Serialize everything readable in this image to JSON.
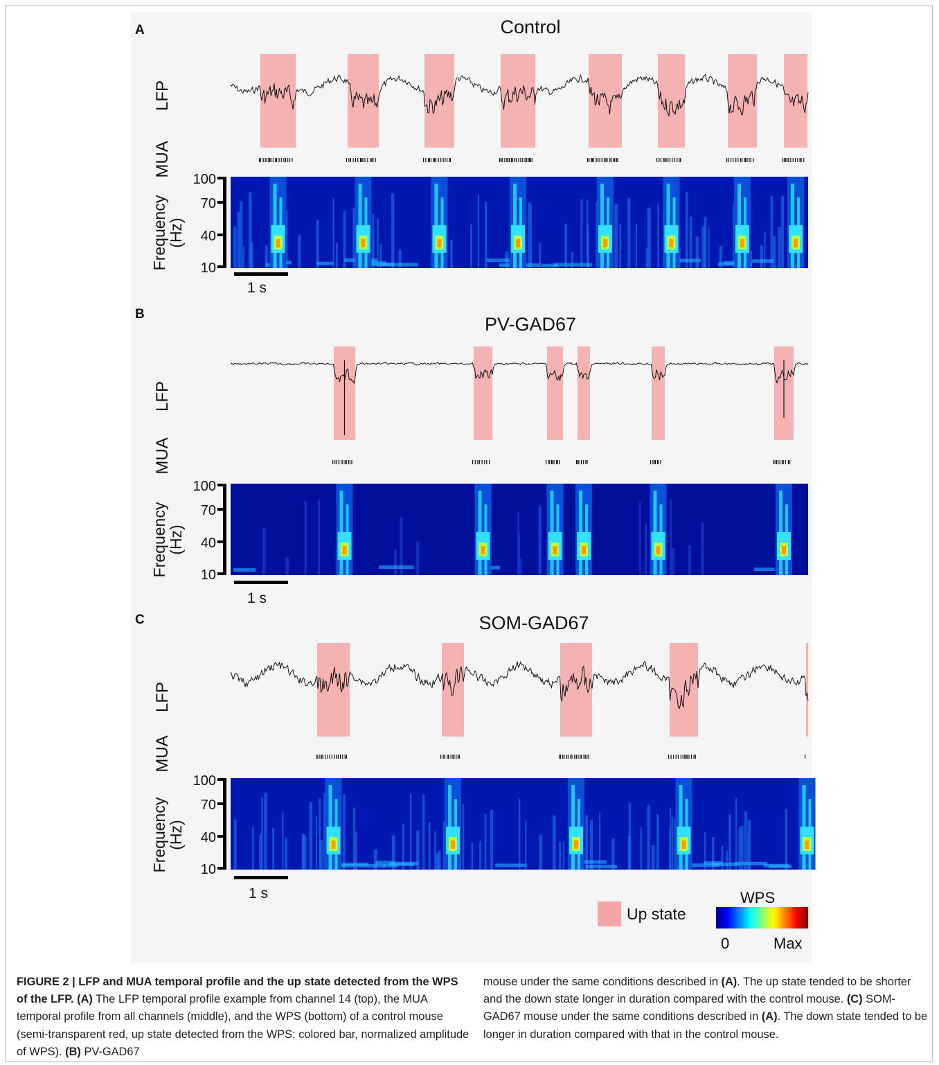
{
  "panels": [
    {
      "letter": "A",
      "title": "Control",
      "lfp_label": "LFP",
      "mua_label": "MUA",
      "freq_label_1": "Frequency",
      "freq_label_2": "(Hz)",
      "ticks": [
        "100",
        "70",
        "40",
        "10"
      ],
      "scale_label": "1 s"
    },
    {
      "letter": "B",
      "title": "PV-GAD67",
      "lfp_label": "LFP",
      "mua_label": "MUA",
      "freq_label_1": "Frequency",
      "freq_label_2": "(Hz)",
      "ticks": [
        "100",
        "70",
        "40",
        "10"
      ],
      "scale_label": "1 s"
    },
    {
      "letter": "C",
      "title": "SOM-GAD67",
      "lfp_label": "LFP",
      "mua_label": "MUA",
      "freq_label_1": "Frequency",
      "freq_label_2": "(Hz)",
      "ticks": [
        "100",
        "70",
        "40",
        "10"
      ],
      "scale_label": "1 s"
    }
  ],
  "legend": {
    "up_state_label": "Up state",
    "colorbar_title": "WPS",
    "colorbar_min": "0",
    "colorbar_max": "Max",
    "up_state_color": "#f4a6a6"
  },
  "caption": {
    "heading": "FIGURE 2 | LFP and MUA temporal profile and the up state detected from the WPS of the LFP.",
    "a_label": "(A)",
    "a_text": " The LFP temporal profile example from channel 14 (top), the MUA temporal profile from all channels (middle), and the WPS (bottom) of a control mouse (semi-transparent red, up state detected from the WPS; colored bar, normalized amplitude of WPS). ",
    "b_label": "(B)",
    "b_text_1": " PV-GAD67",
    "b_text_2": "mouse under the same conditions described in ",
    "b_ref": "(A)",
    "b_text_3": ". The up state tended to be shorter and the down state longer in duration compared with the control mouse. ",
    "c_label": "(C)",
    "c_text": " SOM-GAD67 mouse under the same conditions described in ",
    "c_ref": "(A)",
    "c_text_2": ". The down state tended to be longer in duration compared with that in the control mouse."
  }
}
